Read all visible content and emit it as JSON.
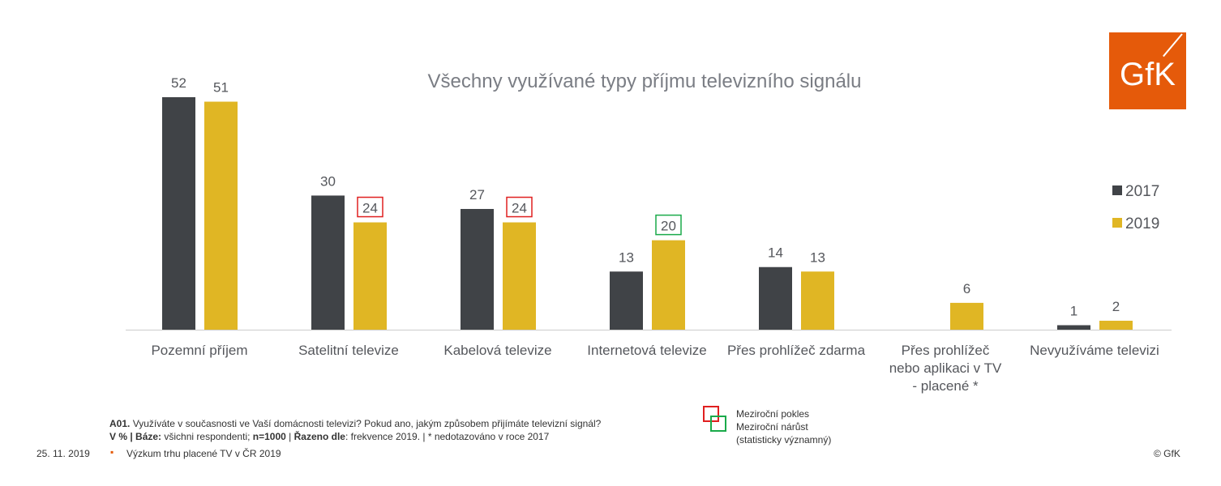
{
  "chart_data": {
    "type": "bar",
    "title": "Všechny využívané typy příjmu televizního signálu",
    "categories": [
      "Pozemní příjem",
      "Satelitní televize",
      "Kabelová televize",
      "Internetová televize",
      "Přes prohlížeč zdarma",
      "Přes prohlížeč nebo aplikaci v TV - placené *",
      "Nevyužíváme televizi"
    ],
    "series": [
      {
        "name": "2017",
        "color": "#404347",
        "values": [
          52,
          30,
          27,
          13,
          14,
          null,
          1
        ]
      },
      {
        "name": "2019",
        "color": "#e0b624",
        "values": [
          51,
          24,
          24,
          20,
          13,
          6,
          2
        ]
      }
    ],
    "highlights": [
      {
        "category": "Satelitní televize",
        "series": "2019",
        "type": "decline",
        "color": "#e02020"
      },
      {
        "category": "Kabelová televize",
        "series": "2019",
        "type": "decline",
        "color": "#e02020"
      },
      {
        "category": "Internetová televize",
        "series": "2019",
        "type": "increase",
        "color": "#1aaa4a"
      }
    ],
    "ylim": [
      0,
      55
    ],
    "legend": "right",
    "grid": false
  },
  "logo": "GfK",
  "legend_notes": {
    "decline": "Meziroční pokles",
    "increase": "Meziroční nárůst",
    "significant": "(statisticky významný)"
  },
  "footnote": {
    "q_code": "A01.",
    "question": " Využíváte v současnosti ve Vaší domácnosti televizi? Pokud ano, jakým způsobem přijímáte televizní signál?",
    "v": "V % | Báze:",
    "base": " všichni respondenti; ",
    "n": "n=1000",
    " sep": "",
    "sort_label": "Řazeno dle",
    "sort": ": frekvence 2019. | * nedotazováno v roce 2017"
  },
  "footer": {
    "date": "25. 11. 2019",
    "project": "Výzkum trhu placené TV v ČR 2019",
    "copyright": "© GfK"
  }
}
